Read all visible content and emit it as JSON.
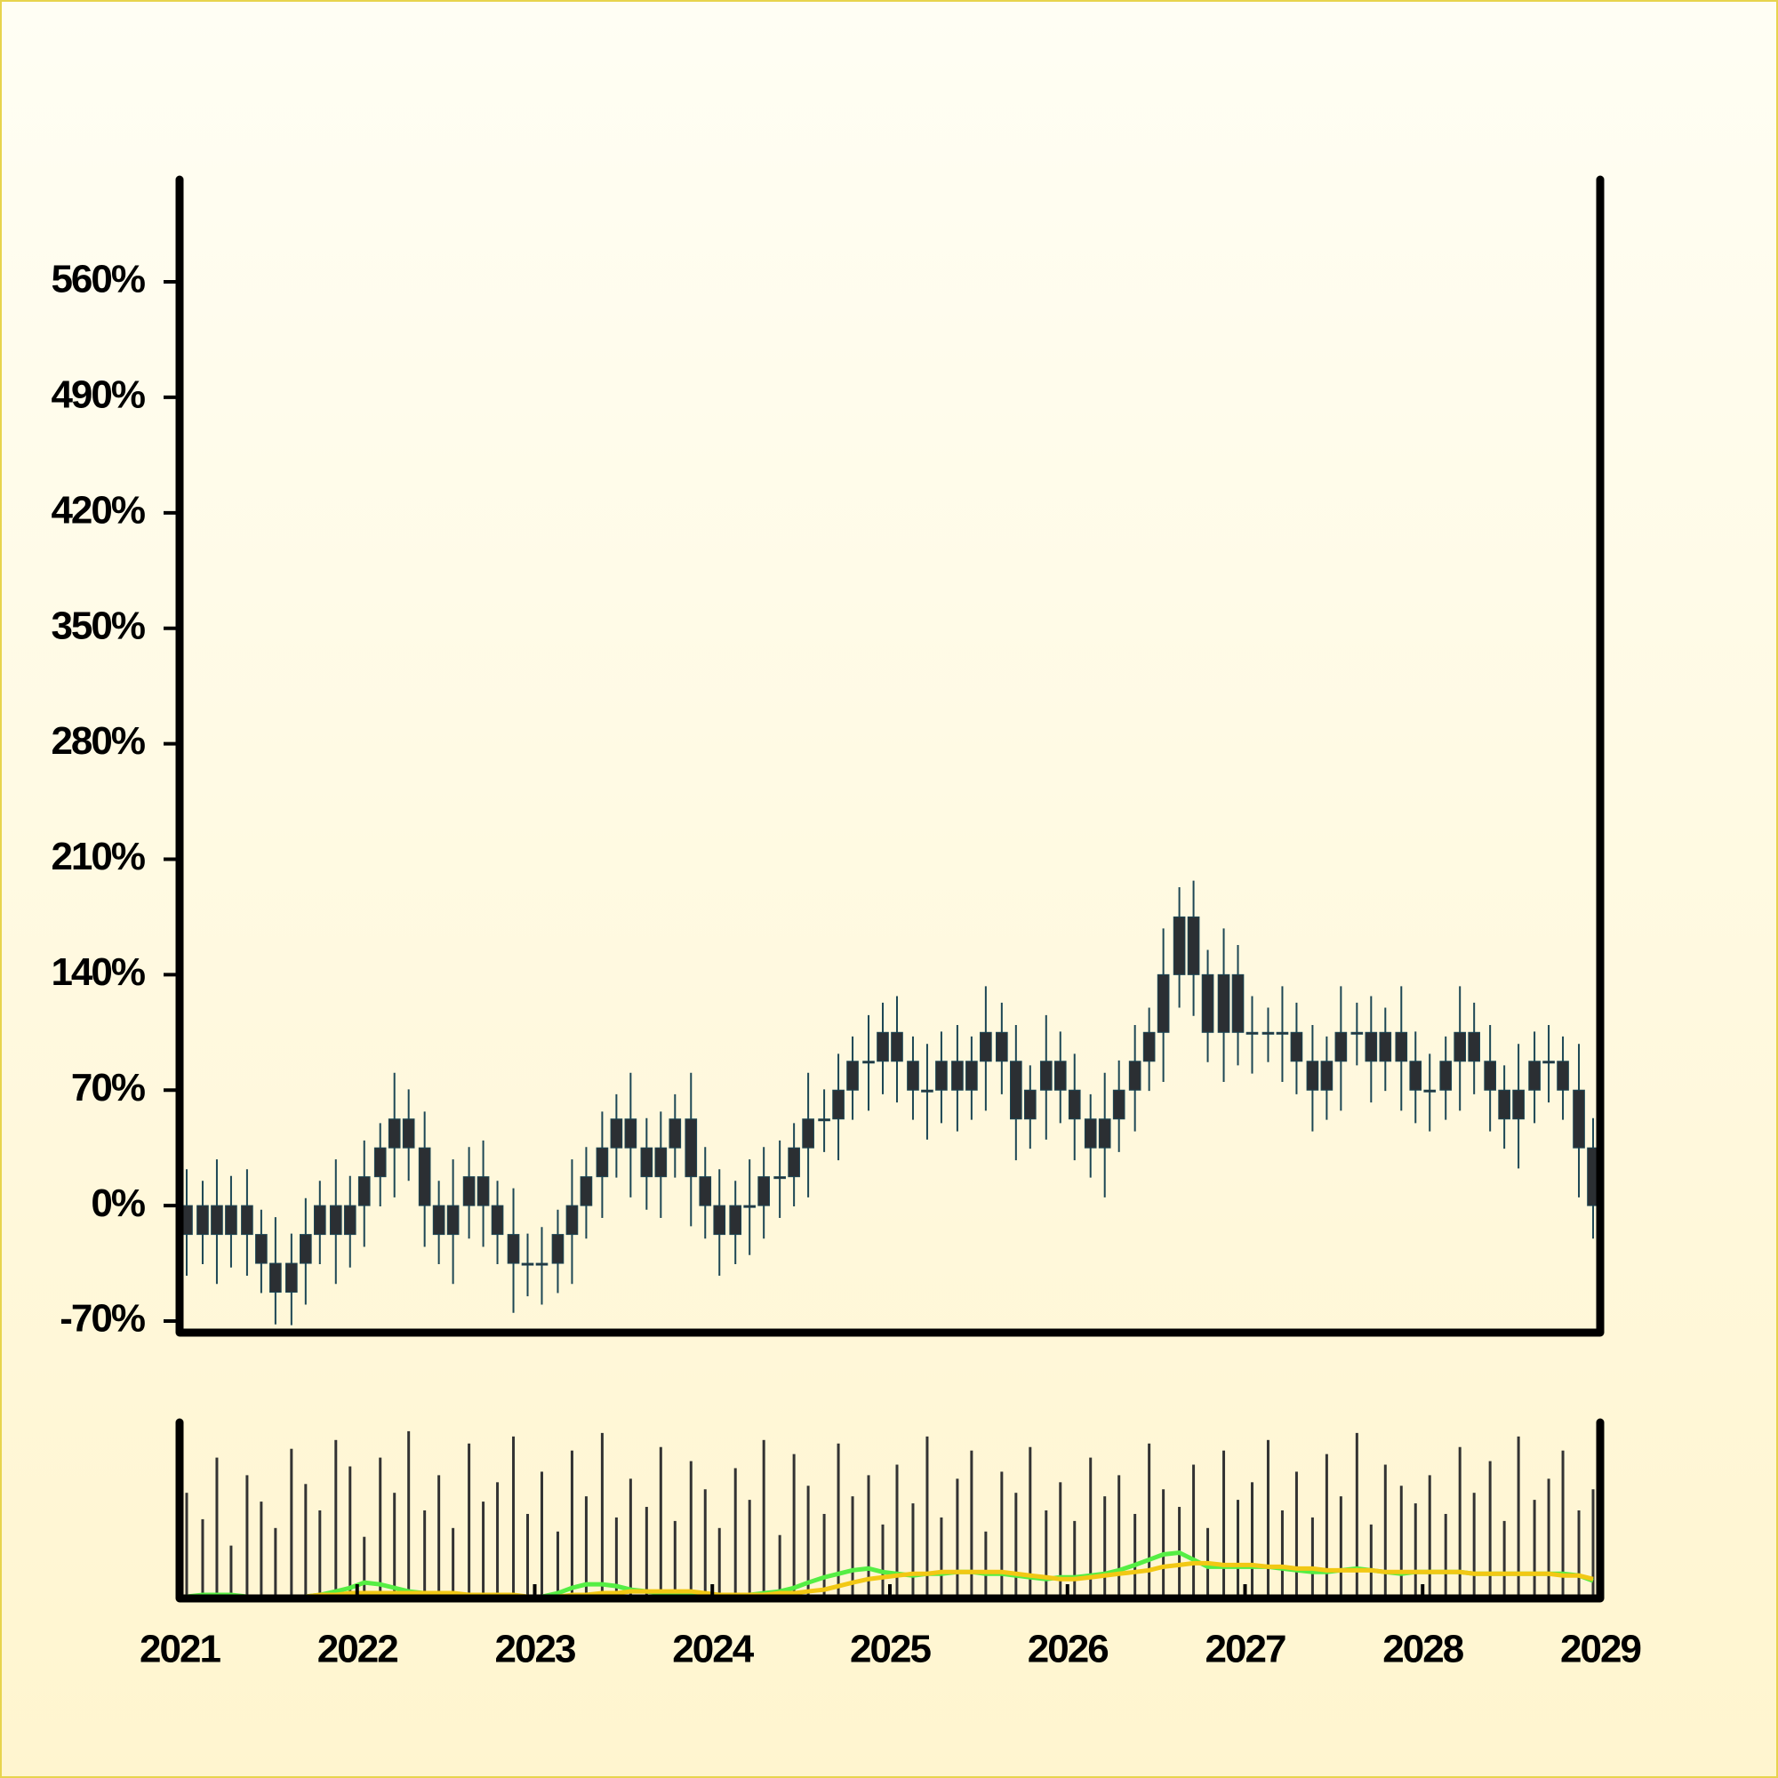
{
  "chart_data": [
    {
      "type": "candlestick",
      "x": [
        2021.04,
        2021.13,
        2021.21,
        2021.29,
        2021.38,
        2021.46,
        2021.54,
        2021.63,
        2021.71,
        2021.79,
        2021.88,
        2021.96,
        2022.04,
        2022.13,
        2022.21,
        2022.29,
        2022.38,
        2022.46,
        2022.54,
        2022.63,
        2022.71,
        2022.79,
        2022.88,
        2022.96,
        2023.04,
        2023.13,
        2023.21,
        2023.29,
        2023.38,
        2023.46,
        2023.54,
        2023.63,
        2023.71,
        2023.79,
        2023.88,
        2023.96,
        2024.04,
        2024.13,
        2024.21,
        2024.29,
        2024.38,
        2024.46,
        2024.54,
        2024.63,
        2024.71,
        2024.79,
        2024.88,
        2024.96,
        2025.04,
        2025.13,
        2025.21,
        2025.29,
        2025.38,
        2025.46,
        2025.54,
        2025.63,
        2025.71,
        2025.79,
        2025.88,
        2025.96,
        2026.04,
        2026.13,
        2026.21,
        2026.29,
        2026.38,
        2026.46,
        2026.54,
        2026.63,
        2026.71,
        2026.79,
        2026.88,
        2026.96,
        2027.04,
        2027.13,
        2027.21,
        2027.29,
        2027.38,
        2027.46,
        2027.54,
        2027.63,
        2027.71,
        2027.79,
        2027.88,
        2027.96,
        2028.04,
        2028.13,
        2028.21,
        2028.29,
        2028.38,
        2028.46,
        2028.54,
        2028.63,
        2028.71,
        2028.79,
        2028.88,
        2028.96
      ],
      "open": [
        0,
        -17.5,
        0,
        -17.5,
        0,
        -17.5,
        -35,
        -52.5,
        -35,
        -17.5,
        0,
        -17.5,
        0,
        17.5,
        35,
        52.5,
        35,
        0,
        -17.5,
        0,
        17.5,
        0,
        -17.5,
        -35,
        -35,
        -35,
        -17.5,
        0,
        17.5,
        35,
        52.5,
        35,
        17.5,
        35,
        52.5,
        17.5,
        0,
        -17.5,
        0,
        0,
        17.5,
        17.5,
        35,
        52.5,
        52.5,
        70,
        87.5,
        87.5,
        105,
        87.5,
        70,
        70,
        87.5,
        70,
        87.5,
        105,
        87.5,
        52.5,
        70,
        87.5,
        70,
        52.5,
        35,
        52.5,
        70,
        87.5,
        105,
        140,
        175,
        140,
        105,
        140,
        105,
        105,
        105,
        105,
        87.5,
        70,
        87.5,
        105,
        105,
        87.5,
        105,
        87.5,
        70,
        70,
        87.5,
        105,
        87.5,
        70,
        52.5,
        70,
        87.5,
        87.5,
        70,
        35
      ],
      "high": [
        22,
        15,
        28,
        18,
        22,
        -2.5,
        -7,
        -17,
        4.5,
        15,
        28,
        18,
        39.5,
        50,
        80.5,
        70.5,
        57,
        15,
        28,
        35.5,
        39.5,
        15,
        10.5,
        -17,
        -13,
        -2.5,
        28,
        35.5,
        57,
        67.5,
        80.5,
        53,
        57,
        67.5,
        80.5,
        35.5,
        22,
        15,
        28,
        35.5,
        39.5,
        50,
        80.5,
        70.5,
        92,
        102.5,
        115.5,
        123,
        127,
        102.5,
        98,
        105.5,
        109.5,
        102.5,
        133,
        123,
        109.5,
        85,
        115.5,
        105.5,
        92,
        67.5,
        80.5,
        88,
        109.5,
        120,
        168,
        193,
        197,
        155,
        168,
        158,
        127,
        120,
        133,
        123,
        109.5,
        102.5,
        133,
        123,
        127,
        120,
        133,
        105.5,
        92,
        102.5,
        133,
        123,
        109.5,
        85,
        98,
        105.5,
        109.5,
        102.5,
        98,
        53
      ],
      "low": [
        -42.5,
        -35.5,
        -47.5,
        -37.5,
        -42.5,
        -53,
        -72,
        -72.5,
        -60,
        -35.5,
        -47.5,
        -37.5,
        -25,
        -0.5,
        5,
        15,
        -25,
        -35.5,
        -47.5,
        -20,
        -25,
        -35.5,
        -65,
        -55,
        -60,
        -53,
        -47.5,
        -20,
        -7.5,
        17,
        5,
        -2.5,
        -7.5,
        17,
        -12.5,
        -20,
        -42.5,
        -35.5,
        -30,
        -20,
        -7.5,
        -0.5,
        5,
        32.5,
        27.5,
        52,
        57.5,
        67.5,
        62.5,
        52,
        40,
        50,
        45,
        52,
        57.5,
        67.5,
        27.5,
        34.5,
        40,
        50,
        27.5,
        17,
        5,
        32.5,
        45,
        69.5,
        75,
        120,
        115,
        87,
        75,
        85,
        80,
        87,
        75,
        67.5,
        45,
        52,
        57.5,
        85,
        62.5,
        69.5,
        57.5,
        50,
        45,
        52,
        57.5,
        67.5,
        45,
        34.5,
        22.5,
        50,
        62.5,
        52,
        5,
        -20
      ],
      "close": [
        -17.5,
        0,
        -17.5,
        0,
        -17.5,
        -35,
        -52.5,
        -35,
        -17.5,
        0,
        -17.5,
        0,
        17.5,
        35,
        52.5,
        35,
        0,
        -17.5,
        0,
        17.5,
        0,
        -17.5,
        -35,
        -35,
        -35,
        -17.5,
        0,
        17.5,
        35,
        52.5,
        35,
        17.5,
        35,
        52.5,
        17.5,
        0,
        -17.5,
        0,
        0,
        17.5,
        17.5,
        35,
        52.5,
        52.5,
        70,
        87.5,
        87.5,
        105,
        87.5,
        70,
        70,
        87.5,
        70,
        87.5,
        105,
        87.5,
        52.5,
        70,
        87.5,
        70,
        52.5,
        35,
        52.5,
        70,
        87.5,
        105,
        140,
        175,
        140,
        105,
        140,
        105,
        105,
        105,
        105,
        87.5,
        70,
        87.5,
        105,
        105,
        87.5,
        105,
        87.5,
        70,
        70,
        87.5,
        105,
        87.5,
        70,
        52.5,
        70,
        87.5,
        87.5,
        70,
        35,
        0
      ],
      "color": "#2b2f33",
      "wick_color": "#1c4654",
      "xlim": [
        2021,
        2029
      ],
      "ylim": [
        -77,
        622
      ],
      "yticks": [
        {
          "value": -70,
          "label": "-70%"
        },
        {
          "value": 0,
          "label": "0%"
        },
        {
          "value": 70,
          "label": "70%"
        },
        {
          "value": 140,
          "label": "140%"
        },
        {
          "value": 210,
          "label": "210%"
        },
        {
          "value": 280,
          "label": "280%"
        },
        {
          "value": 350,
          "label": "350%"
        },
        {
          "value": 420,
          "label": "420%"
        },
        {
          "value": 490,
          "label": "490%"
        },
        {
          "value": 560,
          "label": "560%"
        }
      ]
    },
    {
      "type": "bar",
      "values": [
        60,
        45,
        80,
        30,
        70,
        55,
        40,
        85,
        65,
        50,
        90,
        75,
        35,
        80,
        60,
        95,
        50,
        70,
        40,
        88,
        55,
        66,
        92,
        48,
        72,
        38,
        84,
        58,
        94,
        46,
        68,
        52,
        86,
        44,
        78,
        62,
        40,
        74,
        56,
        90,
        36,
        82,
        64,
        48,
        88,
        58,
        70,
        42,
        76,
        54,
        92,
        46,
        68,
        84,
        38,
        72,
        60,
        86,
        50,
        66,
        44,
        80,
        58,
        70,
        48,
        88,
        62,
        52,
        76,
        40,
        84,
        56,
        66,
        90,
        50,
        72,
        46,
        82,
        58,
        94,
        42,
        76,
        64,
        54,
        70,
        48,
        86,
        60,
        78,
        44,
        92,
        56,
        68,
        84,
        50,
        62
      ],
      "color": "#333333",
      "ylim": [
        0,
        100
      ],
      "xlim": [
        2021,
        2029
      ],
      "xticks": [
        2021,
        2022,
        2023,
        2024,
        2025,
        2026,
        2027,
        2028,
        2029
      ],
      "lines": [
        {
          "color": "#55ee44",
          "values": [
            1,
            2,
            2,
            2,
            1,
            0,
            0,
            0,
            1,
            2,
            4,
            6,
            9,
            8,
            6,
            4,
            3,
            2,
            2,
            1,
            1,
            1,
            0,
            0,
            1,
            3,
            6,
            8,
            8,
            7,
            5,
            4,
            3,
            3,
            2,
            1,
            1,
            1,
            2,
            3,
            4,
            6,
            9,
            12,
            14,
            16,
            17,
            15,
            14,
            13,
            14,
            14,
            15,
            15,
            14,
            14,
            13,
            12,
            11,
            12,
            12,
            13,
            14,
            16,
            19,
            22,
            25,
            26,
            22,
            18,
            18,
            18,
            18,
            18,
            17,
            16,
            15,
            15,
            16,
            17,
            16,
            15,
            14,
            15,
            15,
            15,
            15,
            14,
            14,
            14,
            14,
            14,
            14,
            14,
            13,
            10
          ]
        },
        {
          "color": "#f2c814",
          "values": [
            0,
            0,
            0,
            0,
            0,
            0,
            0,
            1,
            1,
            2,
            2,
            3,
            3,
            3,
            3,
            3,
            3,
            3,
            3,
            2,
            2,
            2,
            2,
            1,
            1,
            1,
            2,
            2,
            3,
            3,
            4,
            4,
            4,
            4,
            4,
            3,
            2,
            2,
            2,
            2,
            3,
            3,
            4,
            5,
            7,
            9,
            11,
            12,
            13,
            14,
            14,
            15,
            15,
            15,
            15,
            15,
            14,
            13,
            12,
            11,
            11,
            12,
            13,
            14,
            15,
            16,
            18,
            19,
            20,
            20,
            19,
            19,
            19,
            18,
            18,
            17,
            17,
            16,
            16,
            16,
            16,
            15,
            15,
            15,
            15,
            15,
            15,
            14,
            14,
            14,
            14,
            14,
            14,
            13,
            13,
            11
          ]
        }
      ]
    }
  ]
}
